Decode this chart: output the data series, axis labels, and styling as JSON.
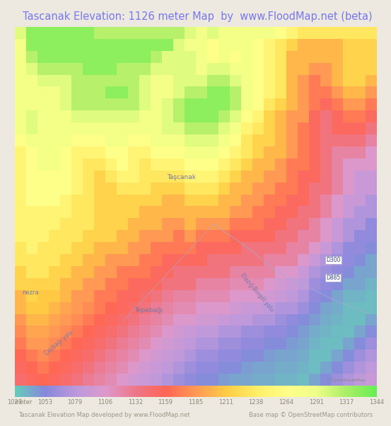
{
  "title": "Tascanak Elevation: 1126 meter Map  by  www.FloodMap.net (beta)",
  "title_color": "#7777ee",
  "title_fontsize": 10.5,
  "background_color": "#ede8e0",
  "elevation_min": 1027,
  "elevation_max": 1344,
  "colorbar_ticks": [
    1027,
    1053,
    1079,
    1106,
    1132,
    1159,
    1185,
    1211,
    1238,
    1264,
    1291,
    1317,
    1344
  ],
  "colorbar_colors": [
    "#66ccbb",
    "#8888dd",
    "#bb99dd",
    "#dd99cc",
    "#ee7788",
    "#ff6655",
    "#ff9955",
    "#ffcc44",
    "#ffee66",
    "#ffff88",
    "#eeff88",
    "#aaee66",
    "#66ee55"
  ],
  "footer_left": "Tascanak Elevation Map developed by www.FloodMap.net",
  "footer_right": "Base map © OpenStreetMap contributors",
  "footer_color": "#999988",
  "label_color": "#7777aa",
  "road_color": "#aaaacc"
}
